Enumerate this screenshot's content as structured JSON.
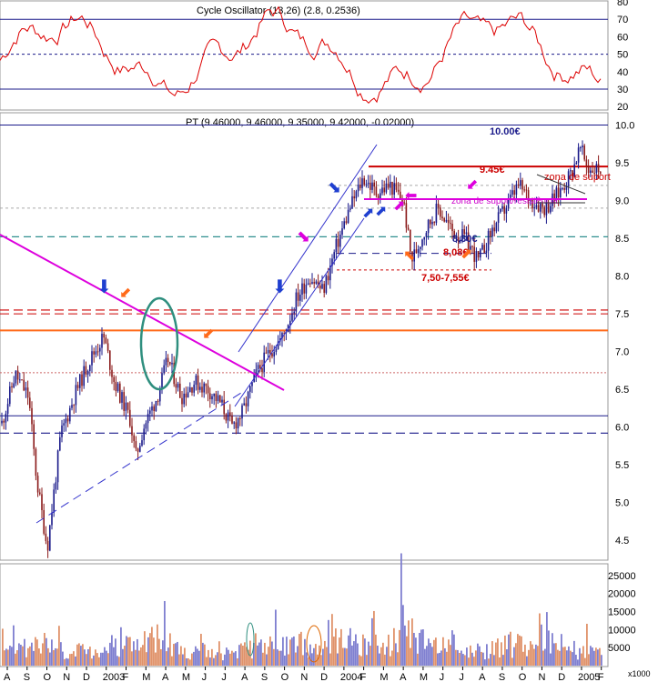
{
  "chart_data": [
    {
      "panel": "oscillator",
      "type": "line",
      "title": "Cycle Oscillator (13,26) (2.8, 0.2536)",
      "ylim": [
        18,
        80
      ],
      "yticks": [
        20,
        30,
        40,
        50,
        60,
        70,
        80
      ],
      "guide_lines": [
        70,
        50,
        30
      ],
      "color": "#dd0000"
    },
    {
      "panel": "price",
      "type": "candlestick",
      "title": "PT (9.46000, 9.46000, 9.35000, 9.42000, -0.02000)",
      "ylim": [
        4.25,
        10.15
      ],
      "yticks": [
        4.5,
        5.0,
        5.5,
        6.0,
        6.5,
        7.0,
        7.5,
        8.0,
        8.5,
        9.0,
        9.5,
        10.0
      ],
      "annotations": {
        "top_level": "10.00€",
        "resistance_high": "9.45€",
        "support_zone": "zona de suport",
        "resistance_zone": "zona de suport/resistência",
        "level_a": "8,30€",
        "level_b": "8,08€",
        "level_c": "7,50-7,55€"
      },
      "horizontal_levels": [
        10.0,
        9.45,
        9.2,
        8.9,
        8.52,
        8.3,
        8.08,
        7.55,
        7.5,
        7.28,
        6.72,
        6.15,
        5.92
      ],
      "candles": [
        {
          "x": 0.0,
          "close": 6.05
        },
        {
          "x": 0.5,
          "close": 6.7
        },
        {
          "x": 1.0,
          "close": 6.4
        },
        {
          "x": 1.3,
          "close": 5.3
        },
        {
          "x": 1.7,
          "close": 4.4
        },
        {
          "x": 2.2,
          "close": 5.9
        },
        {
          "x": 2.8,
          "close": 6.5
        },
        {
          "x": 3.3,
          "close": 6.9
        },
        {
          "x": 3.8,
          "close": 7.2
        },
        {
          "x": 4.2,
          "close": 6.6
        },
        {
          "x": 4.8,
          "close": 6.1
        },
        {
          "x": 5.0,
          "close": 5.6
        },
        {
          "x": 5.3,
          "close": 6.0
        },
        {
          "x": 5.8,
          "close": 6.4
        },
        {
          "x": 6.2,
          "close": 6.9
        },
        {
          "x": 6.7,
          "close": 6.4
        },
        {
          "x": 7.2,
          "close": 6.6
        },
        {
          "x": 7.7,
          "close": 6.5
        },
        {
          "x": 8.2,
          "close": 6.3
        },
        {
          "x": 8.6,
          "close": 6.0
        },
        {
          "x": 9.0,
          "close": 6.2
        },
        {
          "x": 9.5,
          "close": 6.7
        },
        {
          "x": 10.0,
          "close": 7.0
        },
        {
          "x": 10.5,
          "close": 7.2
        },
        {
          "x": 11.0,
          "close": 7.7
        },
        {
          "x": 11.5,
          "close": 8.0
        },
        {
          "x": 12.0,
          "close": 7.8
        },
        {
          "x": 12.5,
          "close": 8.4
        },
        {
          "x": 13.0,
          "close": 8.9
        },
        {
          "x": 13.5,
          "close": 9.3
        },
        {
          "x": 14.0,
          "close": 9.1
        },
        {
          "x": 14.5,
          "close": 9.2
        },
        {
          "x": 15.0,
          "close": 9.0
        },
        {
          "x": 15.3,
          "close": 8.2
        },
        {
          "x": 15.8,
          "close": 8.6
        },
        {
          "x": 16.3,
          "close": 8.9
        },
        {
          "x": 16.8,
          "close": 8.6
        },
        {
          "x": 17.3,
          "close": 8.5
        },
        {
          "x": 17.8,
          "close": 8.2
        },
        {
          "x": 18.3,
          "close": 8.6
        },
        {
          "x": 18.8,
          "close": 8.9
        },
        {
          "x": 19.3,
          "close": 9.2
        },
        {
          "x": 19.8,
          "close": 9.0
        },
        {
          "x": 20.3,
          "close": 8.9
        },
        {
          "x": 20.8,
          "close": 9.1
        },
        {
          "x": 21.3,
          "close": 9.4
        },
        {
          "x": 21.6,
          "close": 9.7
        },
        {
          "x": 21.9,
          "close": 9.42
        }
      ]
    },
    {
      "panel": "volume",
      "type": "bar",
      "ylim": [
        0,
        28000
      ],
      "yticks": [
        5000,
        10000,
        15000,
        20000,
        25000
      ],
      "unit_label": "x1000",
      "bars": [
        {
          "x": 0.3,
          "value": 9000
        },
        {
          "x": 1.1,
          "value": 12000
        },
        {
          "x": 1.7,
          "value": 14000
        },
        {
          "x": 2.4,
          "value": 8000
        },
        {
          "x": 3.5,
          "value": 11000
        },
        {
          "x": 4.4,
          "value": 16000
        },
        {
          "x": 5.0,
          "value": 13000
        },
        {
          "x": 6.0,
          "value": 18000
        },
        {
          "x": 6.8,
          "value": 10000
        },
        {
          "x": 7.6,
          "value": 11000
        },
        {
          "x": 8.5,
          "value": 9000
        },
        {
          "x": 9.1,
          "value": 12000
        },
        {
          "x": 10.0,
          "value": 15000
        },
        {
          "x": 11.0,
          "value": 14000
        },
        {
          "x": 11.8,
          "value": 12000
        },
        {
          "x": 12.8,
          "value": 17000
        },
        {
          "x": 13.6,
          "value": 15000
        },
        {
          "x": 14.5,
          "value": 12000
        },
        {
          "x": 14.9,
          "value": 28000
        },
        {
          "x": 15.3,
          "value": 19000
        },
        {
          "x": 16.0,
          "value": 13000
        },
        {
          "x": 16.8,
          "value": 10000
        },
        {
          "x": 17.5,
          "value": 8000
        },
        {
          "x": 18.3,
          "value": 11000
        },
        {
          "x": 19.1,
          "value": 14000
        },
        {
          "x": 20.0,
          "value": 12000
        },
        {
          "x": 20.8,
          "value": 16000
        },
        {
          "x": 21.6,
          "value": 10000
        }
      ]
    }
  ],
  "x_axis": {
    "labels": [
      "A",
      "S",
      "O",
      "N",
      "D",
      "2003",
      "F",
      "M",
      "A",
      "M",
      "J",
      "J",
      "A",
      "S",
      "O",
      "N",
      "D",
      "2004",
      "F",
      "M",
      "A",
      "M",
      "J",
      "J",
      "A",
      "S",
      "O",
      "N",
      "D",
      "2005",
      "F"
    ]
  }
}
